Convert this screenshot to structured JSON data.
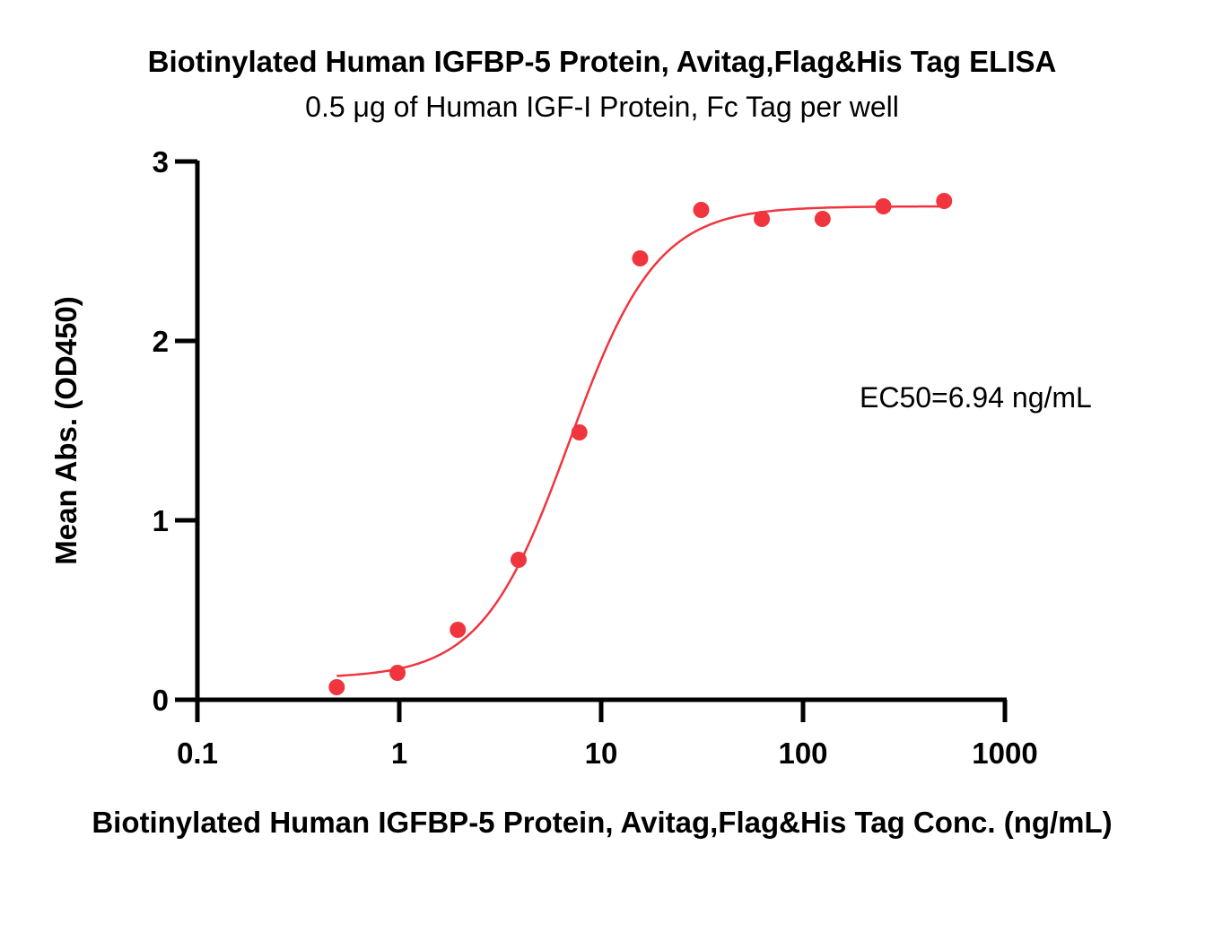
{
  "chart_data": {
    "type": "scatter",
    "title": "Biotinylated Human IGFBP-5 Protein, Avitag,Flag&His Tag ELISA",
    "subtitle": "0.5 μg of Human IGF-I Protein, Fc Tag per well",
    "xlabel": "Biotinylated Human IGFBP-5 Protein, Avitag,Flag&His Tag Conc. (ng/mL)",
    "ylabel": "Mean Abs. (OD450)",
    "x_scale": "log",
    "xlim": [
      0.1,
      1000
    ],
    "ylim": [
      0,
      3
    ],
    "x_ticks": [
      0.1,
      1,
      10,
      100,
      1000
    ],
    "x_tick_labels": [
      "0.1",
      "1",
      "10",
      "100",
      "1000"
    ],
    "y_ticks": [
      0,
      1,
      2,
      3
    ],
    "y_tick_labels": [
      "0",
      "1",
      "2",
      "3"
    ],
    "grid": false,
    "series": [
      {
        "color": "#f0353f",
        "points": [
          {
            "x": 0.49,
            "y": 0.07
          },
          {
            "x": 0.98,
            "y": 0.15
          },
          {
            "x": 1.95,
            "y": 0.39
          },
          {
            "x": 3.9,
            "y": 0.78
          },
          {
            "x": 7.8,
            "y": 1.49
          },
          {
            "x": 15.6,
            "y": 2.46
          },
          {
            "x": 31.3,
            "y": 2.73
          },
          {
            "x": 62.5,
            "y": 2.68
          },
          {
            "x": 125,
            "y": 2.68
          },
          {
            "x": 250,
            "y": 2.75
          },
          {
            "x": 500,
            "y": 2.78
          }
        ],
        "fit": {
          "model": "4PL",
          "bottom": 0.12,
          "top": 2.75,
          "ec50": 6.94,
          "hill": 2.0,
          "x_range": [
            0.49,
            500
          ]
        }
      }
    ],
    "annotations": [
      {
        "text": "EC50=6.94 ng/mL"
      }
    ]
  }
}
